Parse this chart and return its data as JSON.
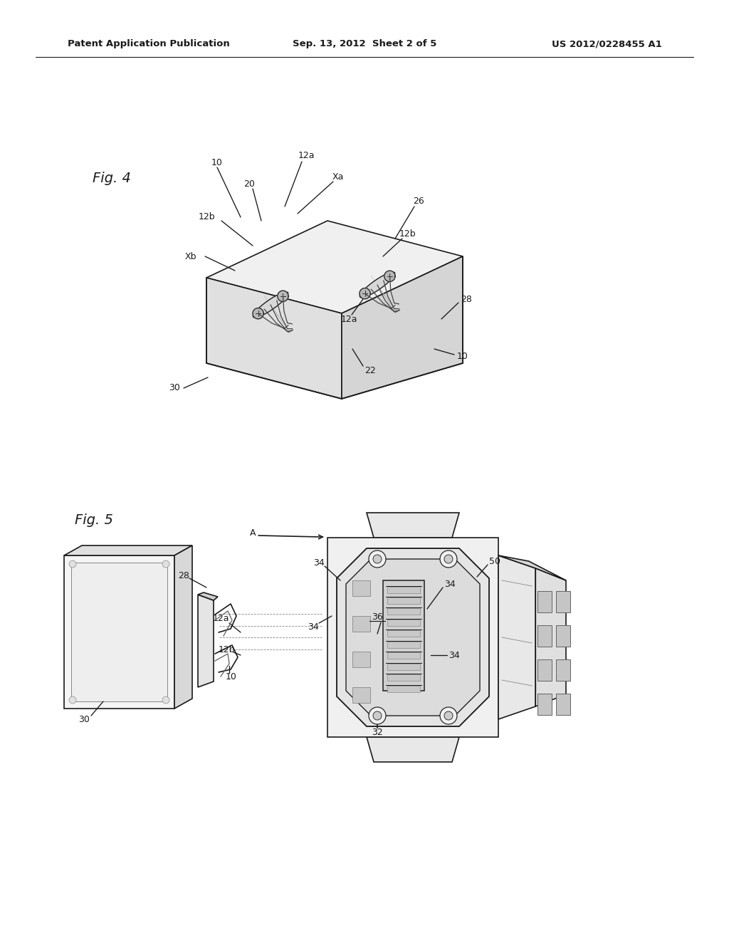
{
  "background_color": "#ffffff",
  "page_width": 10.24,
  "page_height": 13.2,
  "header": {
    "left_text": "Patent Application Publication",
    "center_text": "Sep. 13, 2012  Sheet 2 of 5",
    "right_text": "US 2012/0228455 A1",
    "fontsize": 9.5
  },
  "annotation_fontsize": 9.0,
  "line_color": "#1a1a1a",
  "line_width": 1.2
}
